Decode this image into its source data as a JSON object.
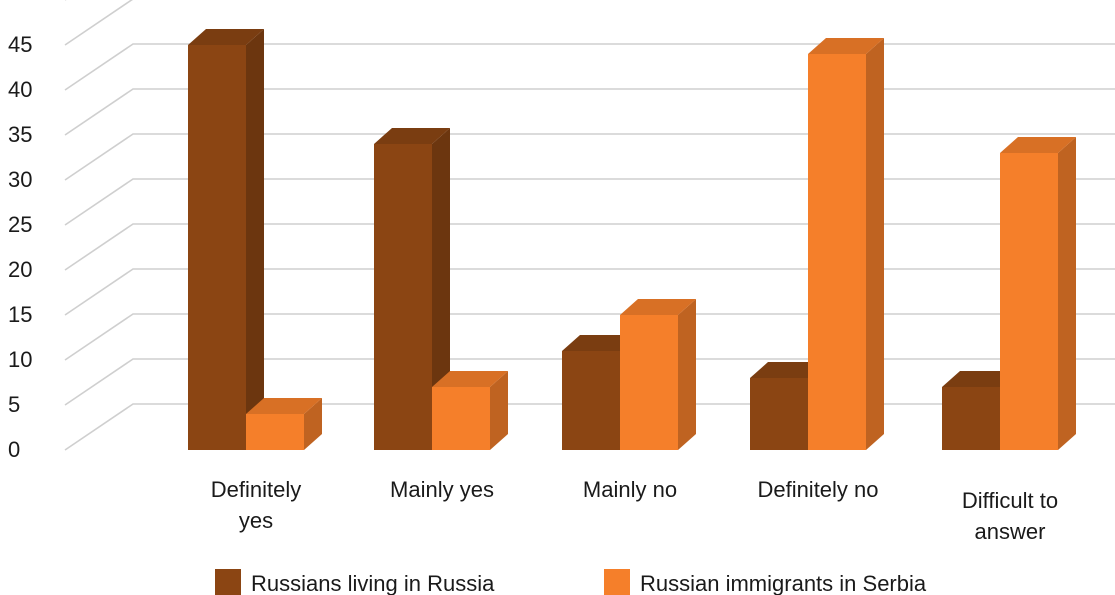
{
  "chart_data": {
    "type": "bar",
    "title": "",
    "xlabel": "",
    "ylabel": "",
    "ylim": [
      0,
      45
    ],
    "yticks": [
      0,
      5,
      10,
      15,
      20,
      25,
      30,
      35,
      40,
      45
    ],
    "grid": true,
    "legend_position": "bottom",
    "categories": [
      [
        "Definitely",
        "yes"
      ],
      [
        "Mainly yes"
      ],
      [
        "Mainly no"
      ],
      [
        "Definitely no"
      ],
      [
        "Difficult to",
        "answer"
      ]
    ],
    "series": [
      {
        "name": "Russians living in Russia",
        "values": [
          45,
          34,
          11,
          8,
          7
        ],
        "color": "#8B4513"
      },
      {
        "name": "Russian immigrants in Serbia",
        "values": [
          4,
          7,
          15,
          44,
          33
        ],
        "color": "#F57F2A"
      }
    ]
  }
}
